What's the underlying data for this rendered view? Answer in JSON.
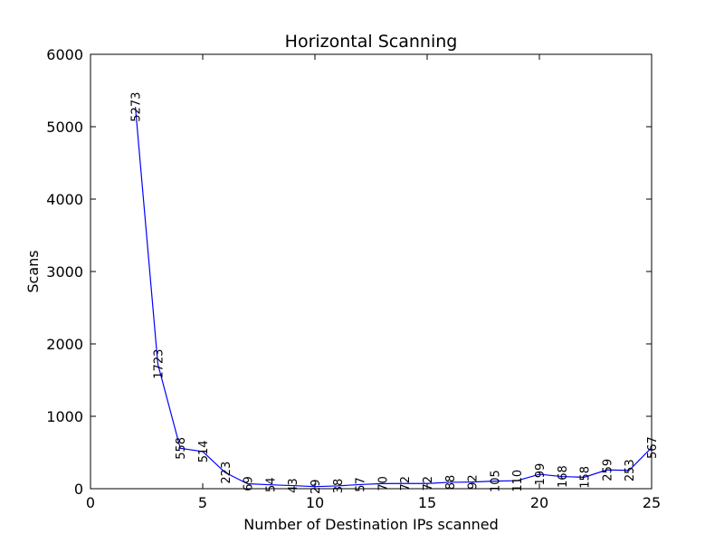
{
  "chart_data": {
    "type": "line",
    "title": "Horizontal Scanning",
    "xlabel": "Number of Destination IPs scanned",
    "ylabel": "Scans",
    "xlim": [
      0,
      25
    ],
    "ylim": [
      0,
      6000
    ],
    "xticks": [
      0,
      5,
      10,
      15,
      20,
      25
    ],
    "yticks": [
      0,
      1000,
      2000,
      3000,
      4000,
      5000,
      6000
    ],
    "grid": false,
    "line_color": "#0000ff",
    "series": [
      {
        "x": [
          2,
          3,
          4,
          5,
          6,
          7,
          8,
          9,
          10,
          11,
          12,
          13,
          14,
          15,
          16,
          17,
          18,
          19,
          20,
          21,
          22,
          23,
          24,
          25
        ],
        "values": [
          5273,
          1723,
          558,
          514,
          223,
          69,
          54,
          43,
          29,
          38,
          57,
          70,
          72,
          72,
          88,
          92,
          105,
          110,
          199,
          168,
          158,
          259,
          253,
          567
        ]
      }
    ]
  }
}
